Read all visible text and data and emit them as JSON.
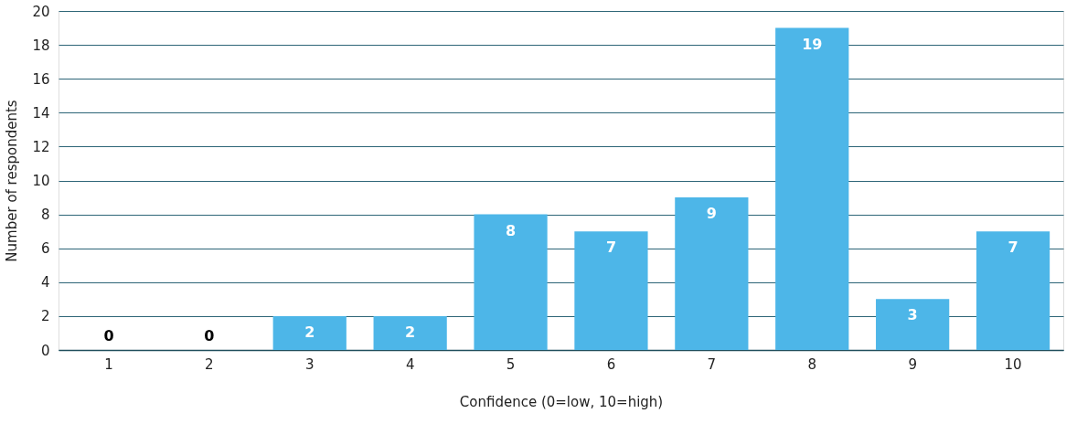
{
  "chart_data": {
    "type": "bar",
    "xlabel": "Confidence (0=low, 10=high)",
    "ylabel": "Number of respondents",
    "categories": [
      "1",
      "2",
      "3",
      "4",
      "5",
      "6",
      "7",
      "8",
      "9",
      "10"
    ],
    "values": [
      0,
      0,
      2,
      2,
      8,
      7,
      9,
      19,
      3,
      7
    ],
    "color": "#4db6e8",
    "ylim": [
      0,
      20
    ],
    "yticks": [
      0,
      2,
      4,
      6,
      8,
      10,
      12,
      14,
      16,
      18,
      20
    ],
    "grid": "y",
    "data_labels": true
  }
}
